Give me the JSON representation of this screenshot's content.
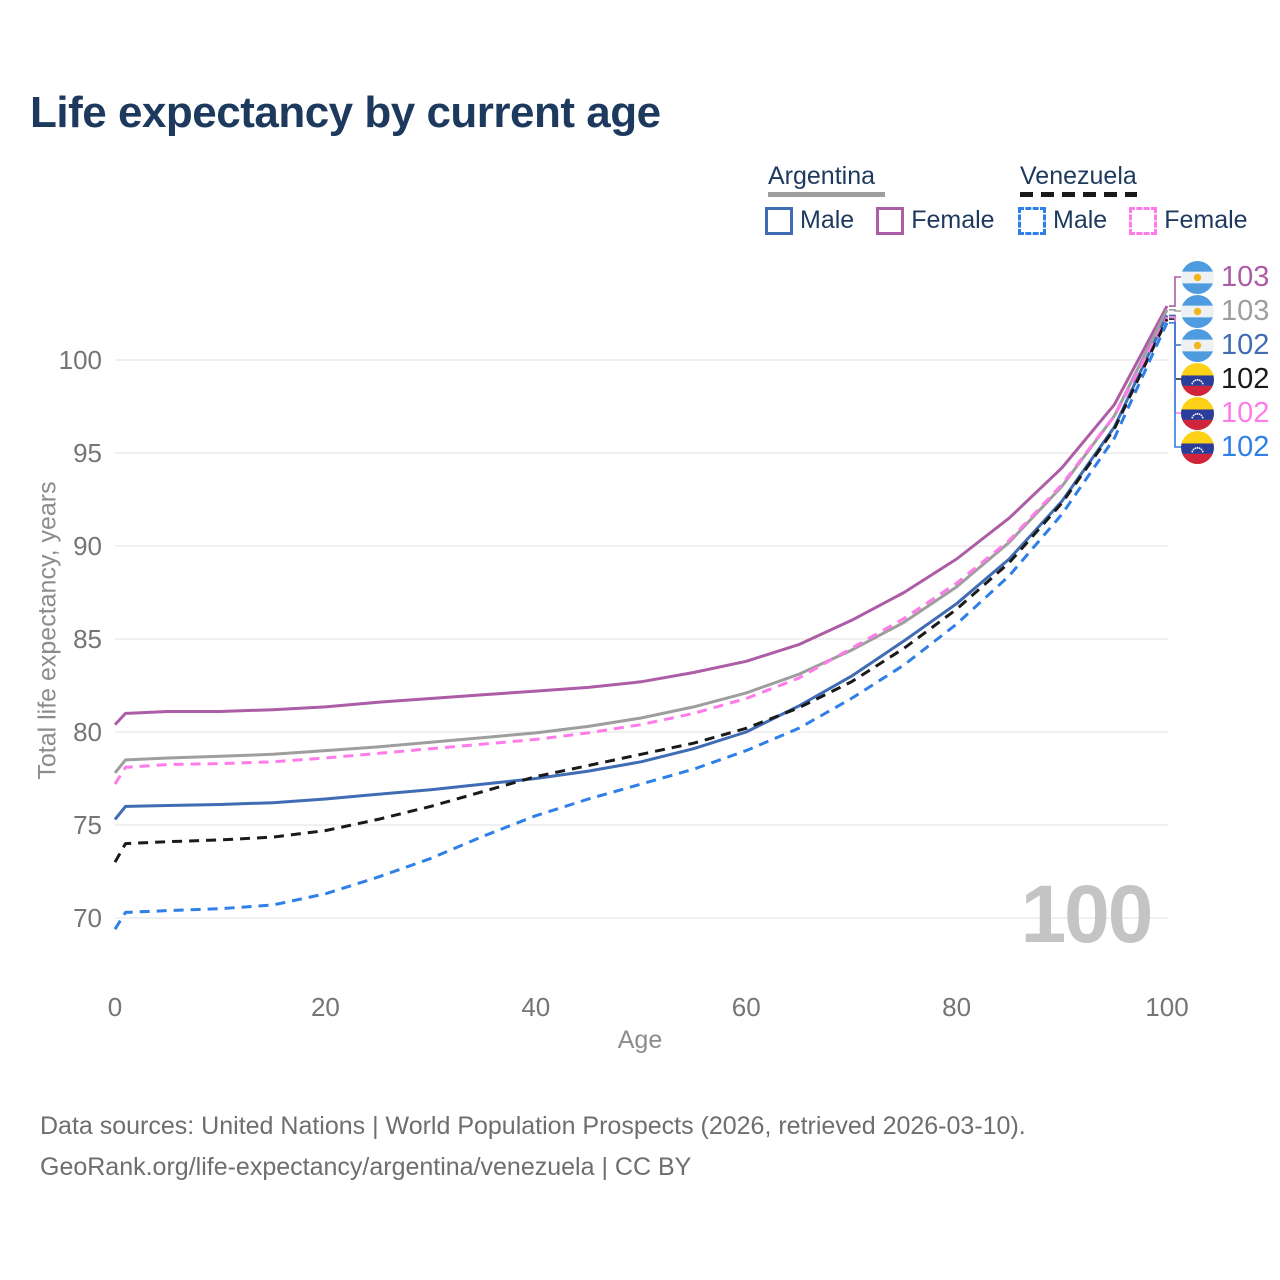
{
  "title": "Life expectancy by current age",
  "legend": {
    "groups": [
      {
        "title": "Argentina",
        "line_style": "solid",
        "underline_color": "#9e9e9e",
        "items": [
          {
            "label": "Male",
            "color": "#3f6cb5",
            "dashed": false
          },
          {
            "label": "Female",
            "color": "#ad5ca6",
            "dashed": false
          }
        ]
      },
      {
        "title": "Venezuela",
        "line_style": "dashed",
        "underline_color": "#1a1a1a",
        "items": [
          {
            "label": "Male",
            "color": "#2f7fe8",
            "dashed": true
          },
          {
            "label": "Female",
            "color": "#ff7bea",
            "dashed": true
          }
        ]
      }
    ]
  },
  "y_axis": {
    "title": "Total life expectancy, years",
    "ticks": [
      70,
      75,
      80,
      85,
      90,
      95,
      100
    ]
  },
  "x_axis": {
    "title": "Age",
    "ticks": [
      0,
      20,
      40,
      60,
      80,
      100
    ]
  },
  "watermark": "100",
  "chart_data": {
    "type": "line",
    "xlabel": "Age",
    "ylabel": "Total life expectancy, years",
    "xlim": [
      0,
      100
    ],
    "ylim": [
      68,
      104
    ],
    "grid": "horizontal",
    "x": [
      0,
      1,
      5,
      10,
      15,
      20,
      25,
      30,
      35,
      40,
      45,
      50,
      55,
      60,
      65,
      70,
      75,
      80,
      85,
      90,
      95,
      100
    ],
    "series": [
      {
        "id": "argentina_female",
        "name": "Argentina Female",
        "color": "#ad5ca6",
        "dashed": false,
        "values": [
          80.4,
          81.0,
          81.1,
          81.1,
          81.2,
          81.35,
          81.6,
          81.8,
          82.0,
          82.2,
          82.4,
          82.7,
          83.2,
          83.8,
          84.7,
          86.0,
          87.5,
          89.3,
          91.5,
          94.2,
          97.6,
          102.9
        ]
      },
      {
        "id": "argentina_all",
        "name": "Argentina",
        "color": "#9e9e9e",
        "dashed": false,
        "values": [
          77.8,
          78.5,
          78.6,
          78.7,
          78.8,
          79.0,
          79.2,
          79.45,
          79.7,
          79.95,
          80.3,
          80.75,
          81.35,
          82.1,
          83.1,
          84.4,
          85.9,
          87.8,
          90.2,
          93.2,
          97.0,
          102.7
        ]
      },
      {
        "id": "argentina_male",
        "name": "Argentina Male",
        "color": "#3f6cb5",
        "dashed": false,
        "values": [
          75.3,
          76.0,
          76.05,
          76.1,
          76.2,
          76.4,
          76.65,
          76.9,
          77.2,
          77.5,
          77.9,
          78.4,
          79.1,
          80.0,
          81.4,
          83.0,
          84.9,
          86.9,
          89.3,
          92.4,
          96.4,
          102.4
        ]
      },
      {
        "id": "venezuela_female",
        "name": "Venezuela Female",
        "color": "#ff7bea",
        "dashed": true,
        "values": [
          77.2,
          78.1,
          78.25,
          78.3,
          78.4,
          78.6,
          78.85,
          79.1,
          79.35,
          79.6,
          79.95,
          80.4,
          81.0,
          81.8,
          82.9,
          84.5,
          86.1,
          88.0,
          90.3,
          93.3,
          97.0,
          102.3
        ]
      },
      {
        "id": "venezuela_all",
        "name": "Venezuela",
        "color": "#1a1a1a",
        "dashed": true,
        "values": [
          73.0,
          74.0,
          74.1,
          74.2,
          74.35,
          74.7,
          75.3,
          76.0,
          76.8,
          77.6,
          78.2,
          78.8,
          79.4,
          80.2,
          81.3,
          82.7,
          84.5,
          86.6,
          89.1,
          92.3,
          96.3,
          102.2
        ]
      },
      {
        "id": "venezuela_male",
        "name": "Venezuela Male",
        "color": "#2f7fe8",
        "dashed": true,
        "values": [
          69.4,
          70.3,
          70.4,
          70.5,
          70.7,
          71.3,
          72.2,
          73.2,
          74.4,
          75.5,
          76.4,
          77.2,
          78.0,
          79.0,
          80.2,
          81.8,
          83.6,
          85.8,
          88.4,
          91.7,
          95.8,
          102.0
        ]
      }
    ]
  },
  "end_labels": [
    {
      "value": "103",
      "series": "argentina_female",
      "flag": "argentina",
      "color": "#ad5ca6"
    },
    {
      "value": "103",
      "series": "argentina_all",
      "flag": "argentina",
      "color": "#9e9e9e"
    },
    {
      "value": "102",
      "series": "argentina_male",
      "flag": "argentina",
      "color": "#3f6cb5"
    },
    {
      "value": "102",
      "series": "venezuela_all",
      "flag": "venezuela",
      "color": "#1a1a1a"
    },
    {
      "value": "102",
      "series": "venezuela_female",
      "flag": "venezuela",
      "color": "#ff7bea"
    },
    {
      "value": "102",
      "series": "venezuela_male",
      "flag": "venezuela",
      "color": "#2f7fe8"
    }
  ],
  "footer": {
    "line1": "Data sources: United Nations | World Population Prospects (2026, retrieved 2026-03-10).",
    "line2": "GeoRank.org/life-expectancy/argentina/venezuela | CC BY"
  },
  "colors": {
    "title_text": "#1d3a5e",
    "axis_text": "#757575",
    "gridline": "#ebebeb",
    "watermark": "#c4c4c4",
    "footer_text": "#6e6e6e"
  }
}
